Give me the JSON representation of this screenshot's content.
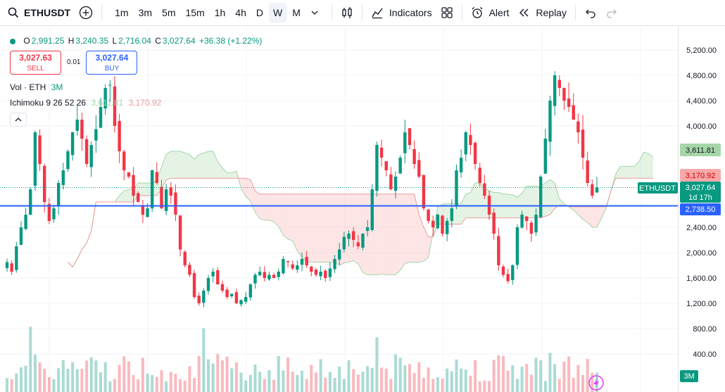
{
  "toolbar": {
    "symbol": "ETHUSDT",
    "intervals": [
      "1m",
      "3m",
      "5m",
      "15m",
      "1h",
      "4h",
      "D",
      "W",
      "M"
    ],
    "active_interval": "W",
    "indicators_label": "Indicators",
    "alert_label": "Alert",
    "replay_label": "Replay"
  },
  "legend": {
    "o_label": "O",
    "o_val": "2,991.25",
    "h_label": "H",
    "h_val": "3,240.35",
    "l_label": "L",
    "l_val": "2,716.04",
    "c_label": "C",
    "c_val": "3,027.64",
    "change": "+36.38 (+1.22%)",
    "sell_price": "3,027.63",
    "sell_label": "SELL",
    "spread": "0.01",
    "buy_price": "3,027.64",
    "buy_label": "BUY",
    "vol_label": "Vol · ETH",
    "vol_val": "3M",
    "ichimoku_label": "Ichimoku 9 26 52 26",
    "ichimoku_a": "3,611.81",
    "ichimoku_b": "3,170.92"
  },
  "price_axis": {
    "ticks": [
      "5,200.00",
      "4,800.00",
      "4,400.00",
      "4,000.00",
      "2,400.00",
      "2,000.00",
      "1,600.00",
      "1,200.00",
      "800.00",
      "400.00"
    ],
    "tick_values": [
      5200,
      4800,
      4400,
      4000,
      2400,
      2000,
      1600,
      1200,
      800,
      400
    ],
    "badges": {
      "span_a": "3,611.81",
      "span_b": "3,170.92",
      "symbol": "ETHUSDT",
      "last": "3,027.64",
      "countdown": "1d 17h",
      "hline": "2,738.50",
      "volume": "3M"
    }
  },
  "colors": {
    "up": "#089981",
    "down": "#f23645",
    "hline": "#2962ff",
    "cloud_up": "#a5d6a7",
    "cloud_down": "#f7a8a8"
  },
  "chart_data": {
    "type": "candlestick",
    "series_closes": [
      1850,
      1700,
      2100,
      2400,
      2600,
      3000,
      3900,
      3400,
      2800,
      2500,
      2700,
      3100,
      3300,
      3600,
      3900,
      4100,
      3800,
      3400,
      3700,
      3950,
      4300,
      4600,
      4650,
      4000,
      3600,
      3300,
      3200,
      2900,
      2800,
      2600,
      2700,
      3300,
      3100,
      2700,
      3000,
      2900,
      2600,
      2050,
      1800,
      1650,
      1300,
      1200,
      1400,
      1600,
      1700,
      1500,
      1400,
      1300,
      1350,
      1200,
      1250,
      1300,
      1500,
      1650,
      1700,
      1600,
      1650,
      1600,
      1700,
      1900,
      1850,
      1750,
      1800,
      1900,
      1800,
      1700,
      1650,
      1700,
      1600,
      1750,
      1900,
      2050,
      2250,
      2300,
      2200,
      2100,
      2300,
      2400,
      3000,
      3700,
      3500,
      3300,
      3000,
      3200,
      3500,
      3900,
      3700,
      3400,
      3200,
      2700,
      2500,
      2400,
      2600,
      2300,
      2500,
      2700,
      3300,
      3500,
      3900,
      3700,
      3400,
      3100,
      2900,
      2600,
      2300,
      1800,
      1650,
      1550,
      1800,
      2400,
      2600,
      2500,
      2300,
      2600,
      3200,
      3800,
      4400,
      4800,
      4600,
      4400,
      4300,
      4100,
      3900,
      3500,
      3100,
      2900,
      3027
    ],
    "ylim": [
      200,
      5400
    ],
    "last": 3027.64,
    "hline": 2738.5
  }
}
